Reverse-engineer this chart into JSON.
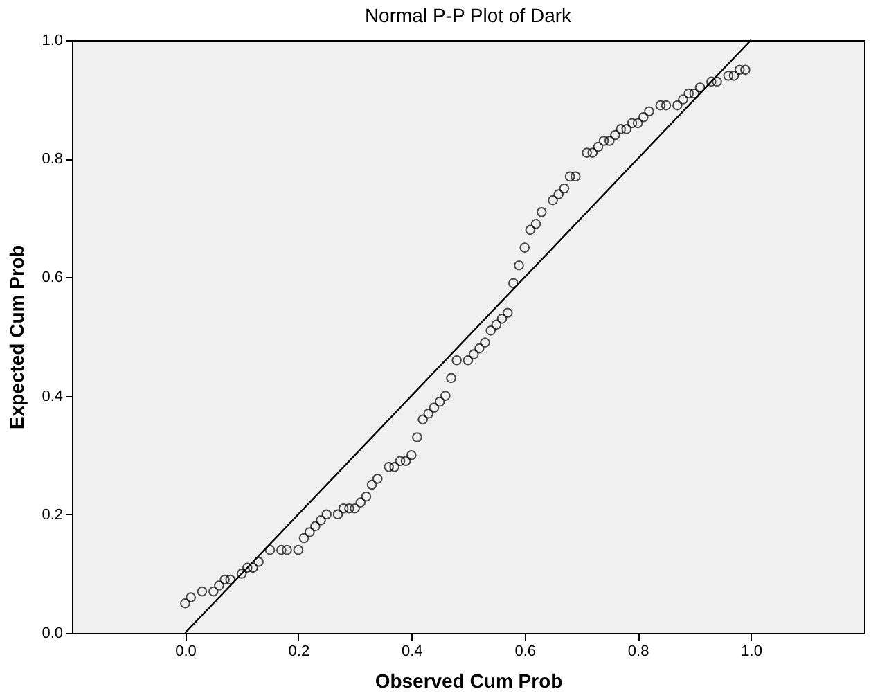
{
  "chart_data": {
    "type": "scatter",
    "title": "Normal P-P Plot of Dark",
    "xlabel": "Observed Cum Prob",
    "ylabel": "Expected Cum Prob",
    "xlim": [
      -0.2,
      1.2
    ],
    "ylim": [
      0,
      1
    ],
    "xticks": [
      {
        "value": 0,
        "label": "0.0"
      },
      {
        "value": 0.2,
        "label": "0.2"
      },
      {
        "value": 0.4,
        "label": "0.4"
      },
      {
        "value": 0.6,
        "label": "0.6"
      },
      {
        "value": 0.8,
        "label": "0.8"
      },
      {
        "value": 1,
        "label": "1.0"
      }
    ],
    "yticks": [
      {
        "value": 0,
        "label": "0.0"
      },
      {
        "value": 0.2,
        "label": "0.2"
      },
      {
        "value": 0.4,
        "label": "0.4"
      },
      {
        "value": 0.6,
        "label": "0.6"
      },
      {
        "value": 0.8,
        "label": "0.8"
      },
      {
        "value": 1,
        "label": "1.0"
      }
    ],
    "grid": false,
    "series": [
      {
        "marker": "circle",
        "color": "#000000",
        "x": [
          0.0,
          0.01,
          0.03,
          0.05,
          0.06,
          0.07,
          0.08,
          0.1,
          0.11,
          0.12,
          0.13,
          0.15,
          0.17,
          0.18,
          0.2,
          0.21,
          0.22,
          0.23,
          0.24,
          0.25,
          0.27,
          0.28,
          0.29,
          0.3,
          0.31,
          0.32,
          0.33,
          0.34,
          0.36,
          0.37,
          0.38,
          0.39,
          0.4,
          0.41,
          0.42,
          0.43,
          0.44,
          0.45,
          0.46,
          0.47,
          0.48,
          0.5,
          0.51,
          0.52,
          0.53,
          0.54,
          0.55,
          0.56,
          0.57,
          0.58,
          0.59,
          0.6,
          0.61,
          0.62,
          0.63,
          0.65,
          0.66,
          0.67,
          0.68,
          0.69,
          0.71,
          0.72,
          0.73,
          0.74,
          0.75,
          0.76,
          0.77,
          0.78,
          0.79,
          0.8,
          0.81,
          0.82,
          0.84,
          0.85,
          0.87,
          0.88,
          0.89,
          0.9,
          0.91,
          0.93,
          0.94,
          0.96,
          0.97,
          0.98,
          0.99
        ],
        "values": [
          0.05,
          0.06,
          0.07,
          0.07,
          0.08,
          0.09,
          0.09,
          0.1,
          0.11,
          0.11,
          0.12,
          0.14,
          0.14,
          0.14,
          0.14,
          0.16,
          0.17,
          0.18,
          0.19,
          0.2,
          0.2,
          0.21,
          0.21,
          0.21,
          0.22,
          0.23,
          0.25,
          0.26,
          0.28,
          0.28,
          0.29,
          0.29,
          0.3,
          0.33,
          0.36,
          0.37,
          0.38,
          0.39,
          0.4,
          0.43,
          0.46,
          0.46,
          0.47,
          0.48,
          0.49,
          0.51,
          0.52,
          0.53,
          0.54,
          0.59,
          0.62,
          0.65,
          0.68,
          0.69,
          0.71,
          0.73,
          0.74,
          0.75,
          0.77,
          0.77,
          0.81,
          0.81,
          0.82,
          0.83,
          0.83,
          0.84,
          0.85,
          0.85,
          0.86,
          0.86,
          0.87,
          0.88,
          0.89,
          0.89,
          0.89,
          0.9,
          0.91,
          0.91,
          0.92,
          0.93,
          0.93,
          0.94,
          0.94,
          0.95,
          0.95
        ]
      },
      {
        "type": "line",
        "color": "#000000",
        "line_style": "solid",
        "marker": "none",
        "x": [
          0,
          1
        ],
        "values": [
          0,
          1
        ]
      }
    ]
  }
}
